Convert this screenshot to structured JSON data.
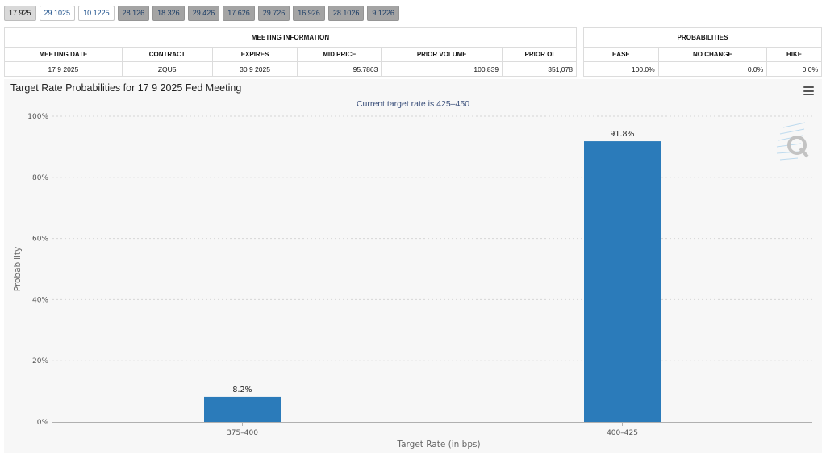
{
  "tabs": [
    {
      "label": "17 925",
      "state": "active"
    },
    {
      "label": "29 1025",
      "state": "plain"
    },
    {
      "label": "10 1225",
      "state": "plain"
    },
    {
      "label": "28 126",
      "state": "grey"
    },
    {
      "label": "18 326",
      "state": "grey"
    },
    {
      "label": "29 426",
      "state": "grey"
    },
    {
      "label": "17 626",
      "state": "grey"
    },
    {
      "label": "29 726",
      "state": "grey"
    },
    {
      "label": "16 926",
      "state": "grey"
    },
    {
      "label": "28 1026",
      "state": "grey"
    },
    {
      "label": "9 1226",
      "state": "grey"
    }
  ],
  "meeting_info": {
    "title": "MEETING INFORMATION",
    "columns": [
      "MEETING DATE",
      "CONTRACT",
      "EXPIRES",
      "MID PRICE",
      "PRIOR VOLUME",
      "PRIOR OI"
    ],
    "row": [
      "17 9 2025",
      "ZQU5",
      "30 9 2025",
      "95.7863",
      "100,839",
      "351,078"
    ]
  },
  "probabilities": {
    "title": "PROBABILITIES",
    "columns": [
      "EASE",
      "NO CHANGE",
      "HIKE"
    ],
    "row": [
      "100.0%",
      "0.0%",
      "0.0%"
    ]
  },
  "colors": {
    "bar": "#2b7bba",
    "grid": "#d6d6d6"
  },
  "icons": {
    "menu": "hamburger-icon",
    "watermark": "q-logo-icon"
  },
  "chart_data": {
    "type": "bar",
    "title": "Target Rate Probabilities for 17 9 2025 Fed Meeting",
    "subtitle": "Current target rate is 425–450",
    "xlabel": "Target Rate (in bps)",
    "ylabel": "Probability",
    "categories": [
      "375–400",
      "400–425"
    ],
    "values": [
      8.2,
      91.8
    ],
    "data_labels": [
      "8.2%",
      "91.8%"
    ],
    "ylim": [
      0,
      100
    ],
    "yticks": [
      0,
      20,
      40,
      60,
      80,
      100
    ],
    "ytick_labels": [
      "0%",
      "20%",
      "40%",
      "60%",
      "80%",
      "100%"
    ],
    "grid": true,
    "legend": "none"
  }
}
